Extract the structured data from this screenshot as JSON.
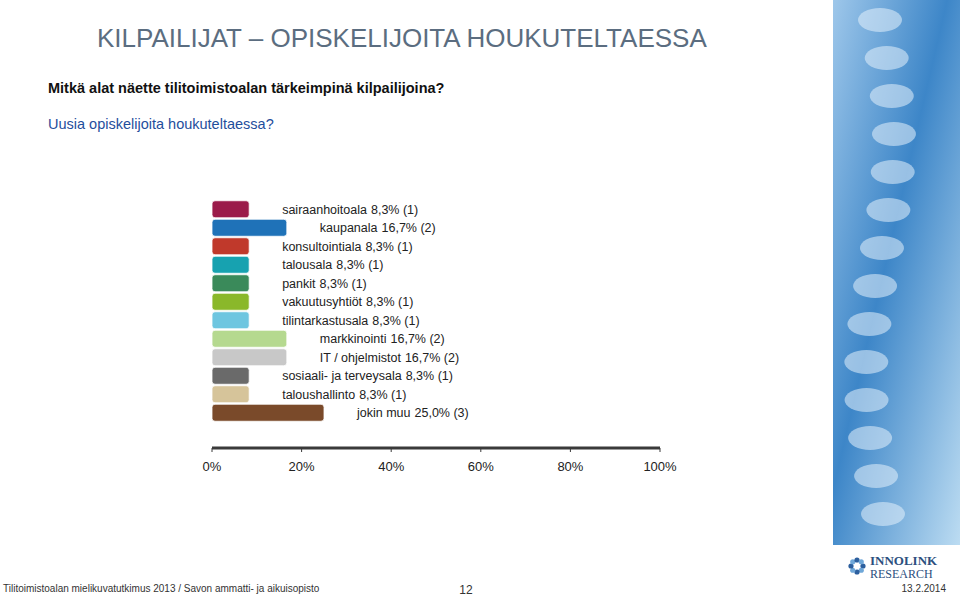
{
  "chart_data": {
    "type": "bar",
    "orientation": "horizontal",
    "title": "KILPAILIJAT – OPISKELIJOITA HOUKUTELTAESSA",
    "question": "Mitkä alat näette tilitoimistoalan tärkeimpinä kilpailijoina?",
    "subtitle": "Uusia opiskelijoita houkuteltaessa?",
    "categories": [
      "sairaanhoitoala",
      "kaupanala",
      "konsultointiala",
      "talousala",
      "pankit",
      "vakuutusyhtiöt",
      "tilintarkastusala",
      "markkinointi",
      "IT / ohjelmistot",
      "sosiaali- ja terveysala",
      "taloushallinto",
      "jokin muu"
    ],
    "values": [
      8.3,
      16.7,
      8.3,
      8.3,
      8.3,
      8.3,
      8.3,
      16.7,
      16.7,
      8.3,
      8.3,
      25.0
    ],
    "value_labels": [
      "8,3% (1)",
      "16,7% (2)",
      "8,3% (1)",
      "8,3% (1)",
      "8,3% (1)",
      "8,3% (1)",
      "8,3% (1)",
      "16,7% (2)",
      "16,7% (2)",
      "8,3% (1)",
      "8,3% (1)",
      "25,0% (3)"
    ],
    "colors": [
      "#9b1b4a",
      "#1f72b8",
      "#c0392b",
      "#17a2b0",
      "#3a8a5a",
      "#8ab82a",
      "#6ec6e0",
      "#b5d98f",
      "#c8c8c8",
      "#6a6a6a",
      "#d6c49a",
      "#7a4a2a"
    ],
    "xlim": [
      0,
      100
    ],
    "xticks": [
      {
        "value": 0,
        "label": "0%"
      },
      {
        "value": 20,
        "label": "20%"
      },
      {
        "value": 40,
        "label": "40%"
      },
      {
        "value": 60,
        "label": "60%"
      },
      {
        "value": 80,
        "label": "80%"
      },
      {
        "value": 100,
        "label": "100%"
      }
    ],
    "data_labels": true,
    "tick_labels": "x",
    "grid": false
  },
  "footer": "Tilitoimistoalan mielikuvatutkimus 2013 / Savon ammatti- ja aikuisopisto",
  "page_number": "12",
  "date": "13.2.2014",
  "logo": [
    "INNOLINK",
    "RESEARCH"
  ]
}
